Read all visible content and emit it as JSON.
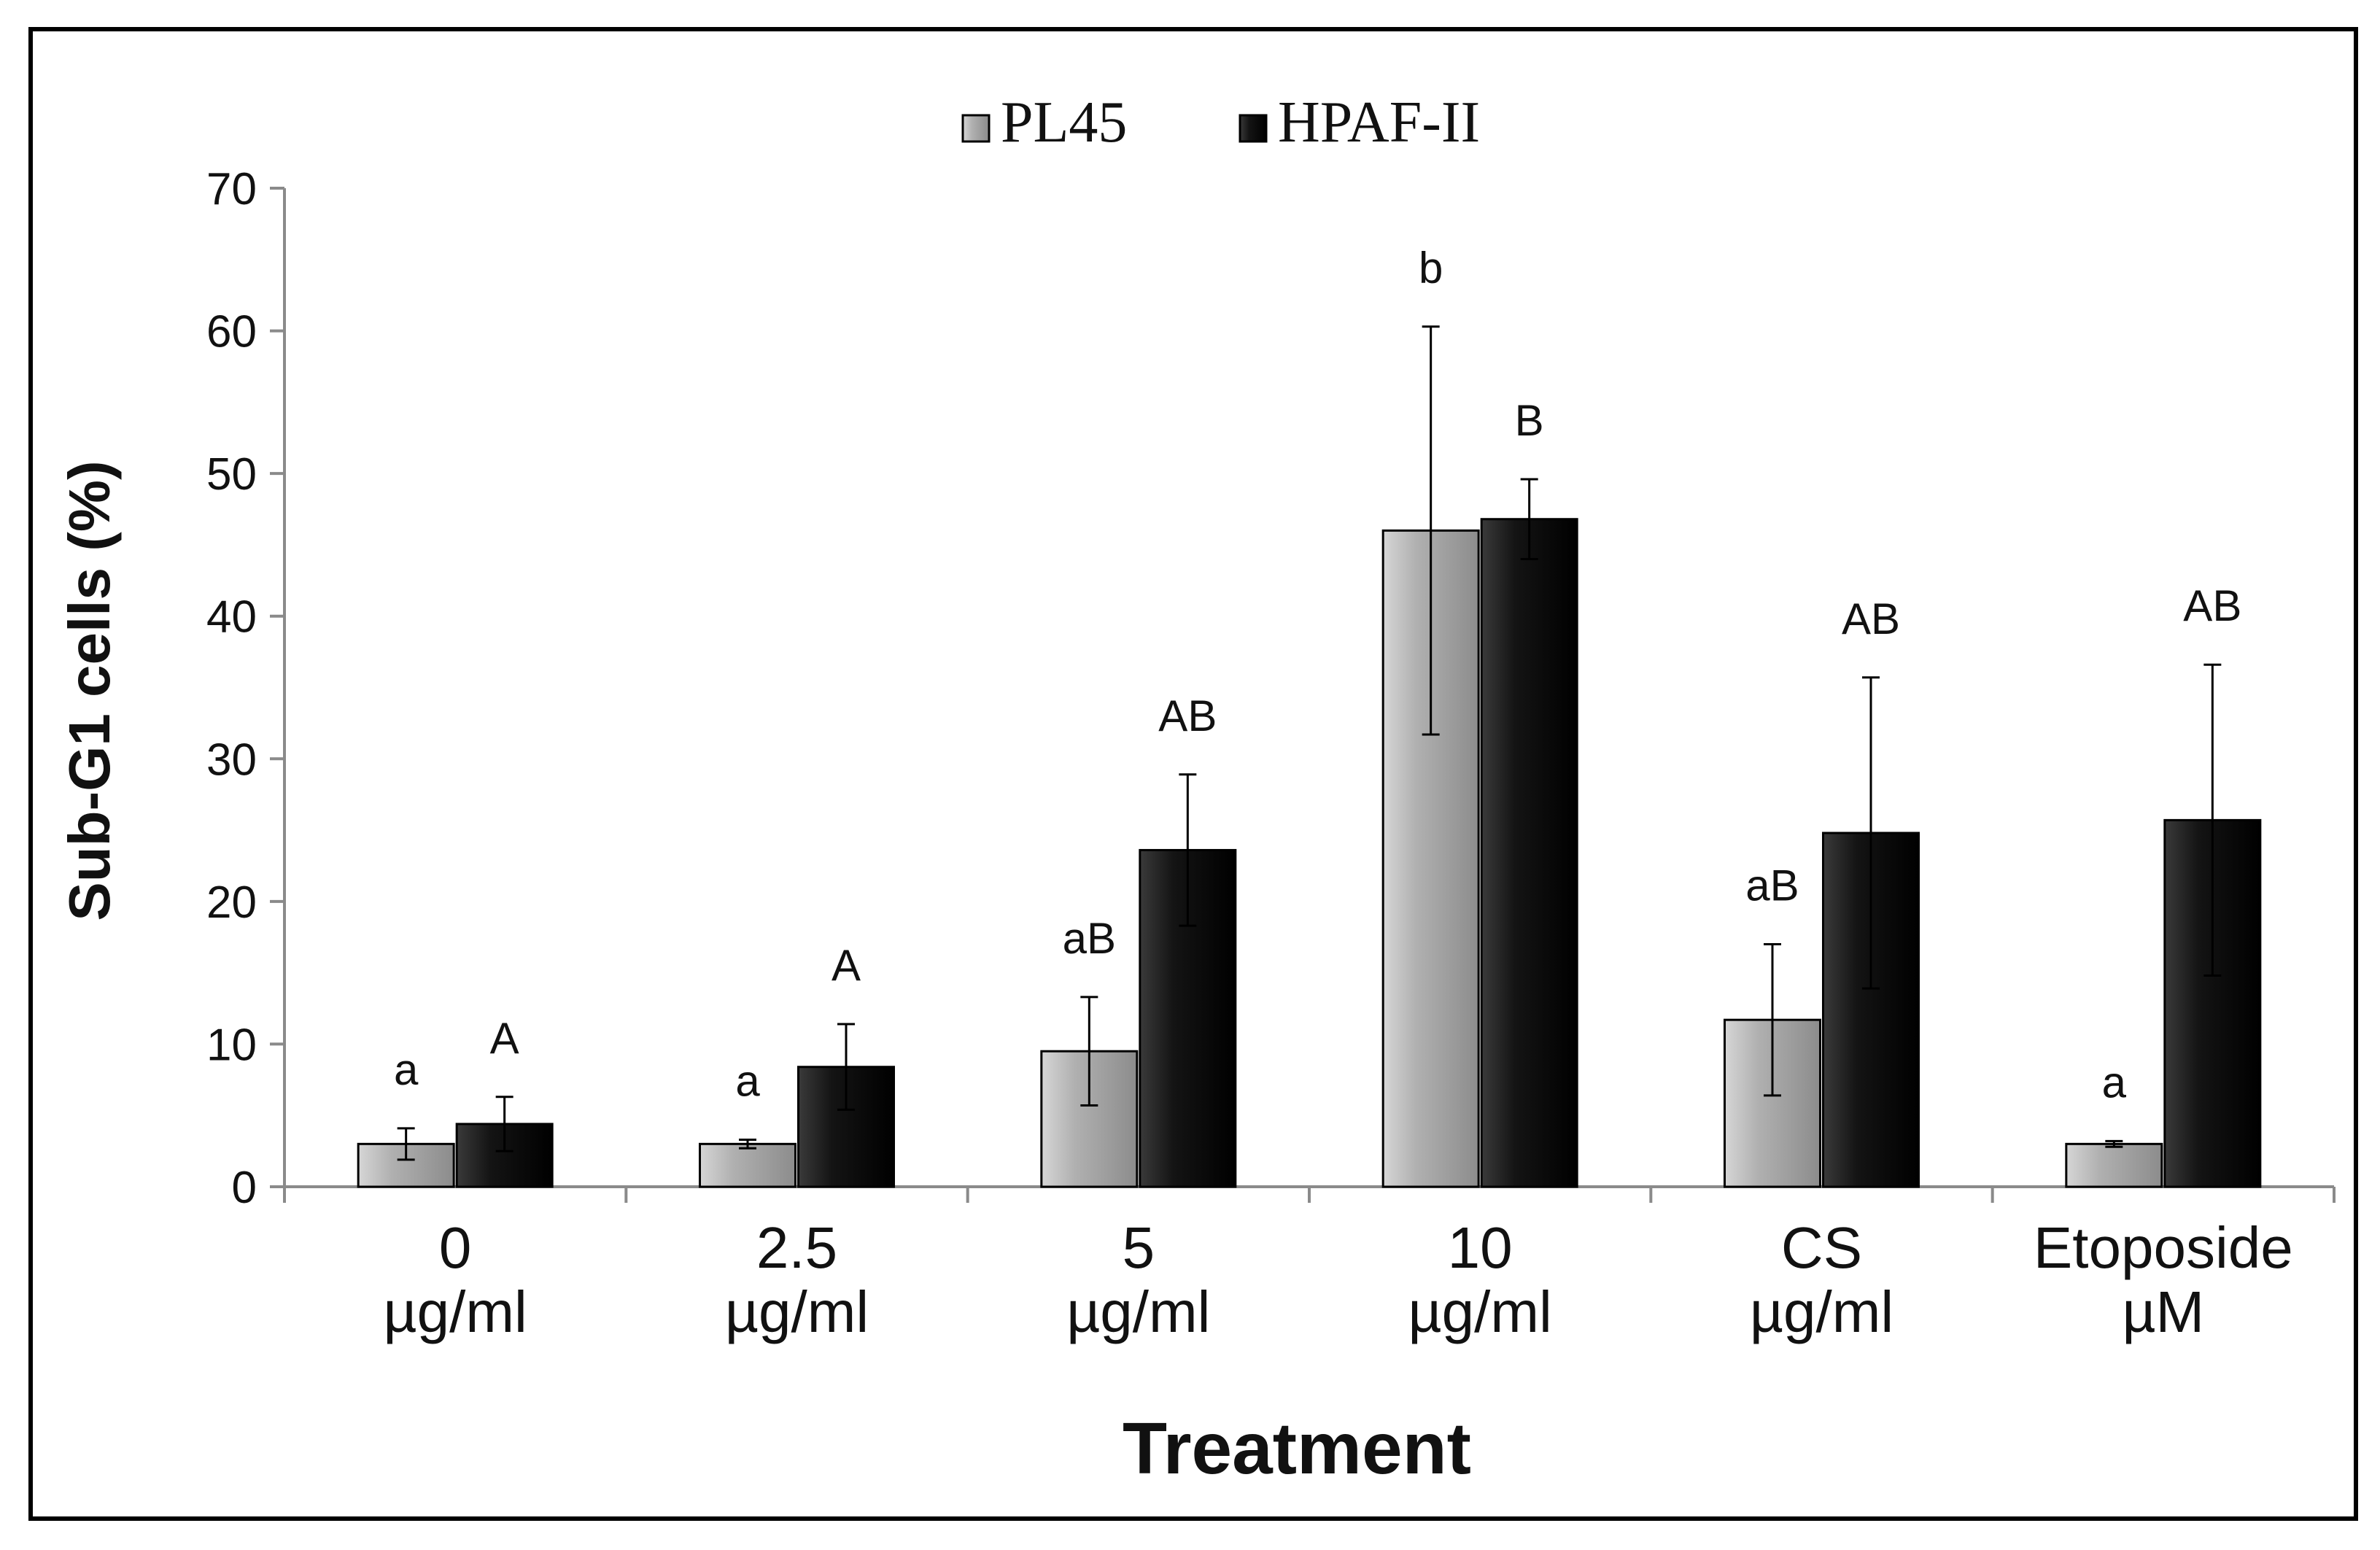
{
  "chart_data": {
    "type": "bar",
    "title": "",
    "xlabel": "Treatment",
    "ylabel": "Sub-G1 cells (%)",
    "ylim": [
      0,
      70
    ],
    "yticks": [
      0,
      10,
      20,
      30,
      40,
      50,
      60,
      70
    ],
    "grid": false,
    "legend_position": "top-center",
    "categories": [
      [
        "0",
        "µg/ml"
      ],
      [
        "2.5",
        "µg/ml"
      ],
      [
        "5",
        "µg/ml"
      ],
      [
        "10",
        "µg/ml"
      ],
      [
        "CS",
        "µg/ml"
      ],
      [
        "Etoposide",
        "µM"
      ]
    ],
    "series": [
      {
        "name": "PL45",
        "color": "#a6a6a6",
        "values": [
          3.0,
          3.0,
          9.5,
          46.0,
          11.7,
          3.0
        ],
        "errors": [
          1.1,
          0.3,
          3.8,
          14.3,
          5.3,
          0.2
        ],
        "labels": [
          "a",
          "a",
          "aB",
          "b",
          "aB",
          "a"
        ]
      },
      {
        "name": "HPAF-II",
        "color": "#141414",
        "values": [
          4.4,
          8.4,
          23.6,
          46.8,
          24.8,
          25.7
        ],
        "errors": [
          1.9,
          3.0,
          5.3,
          2.8,
          10.9,
          10.9
        ],
        "labels": [
          "A",
          "A",
          "AB",
          "B",
          "AB",
          "AB"
        ]
      }
    ]
  }
}
